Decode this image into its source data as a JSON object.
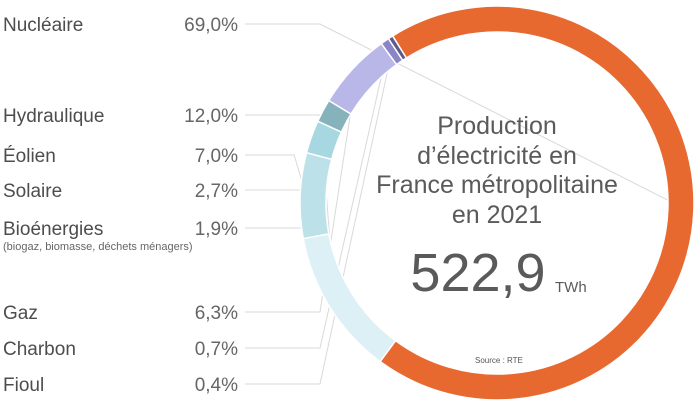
{
  "chart_data": {
    "type": "pie",
    "title_lines": [
      "Production",
      "d’électricité en",
      "France métropolitaine",
      "en 2021"
    ],
    "total_value": "522,9",
    "total_unit": "TWh",
    "source": "Source : RTE",
    "categories": [
      "Nucléaire",
      "Hydraulique",
      "Éolien",
      "Solaire",
      "Bioénergies",
      "Gaz",
      "Charbon",
      "Fioul"
    ],
    "values": [
      69.0,
      12.0,
      7.0,
      2.7,
      1.9,
      6.3,
      0.7,
      0.4
    ],
    "value_labels": [
      "69,0%",
      "12,0%",
      "7,0%",
      "2,7%",
      "1,9%",
      "6,3%",
      "0,7%",
      "0,4%"
    ],
    "sublabels": [
      "",
      "",
      "",
      "",
      "(biogaz, biomasse, déchets ménagers)",
      "",
      "",
      ""
    ],
    "colors": [
      "#e8692f",
      "#ddf0f5",
      "#bde1e8",
      "#a7d7e0",
      "#86b3bb",
      "#b9b6e8",
      "#8a86c6",
      "#5e5a8a"
    ]
  }
}
